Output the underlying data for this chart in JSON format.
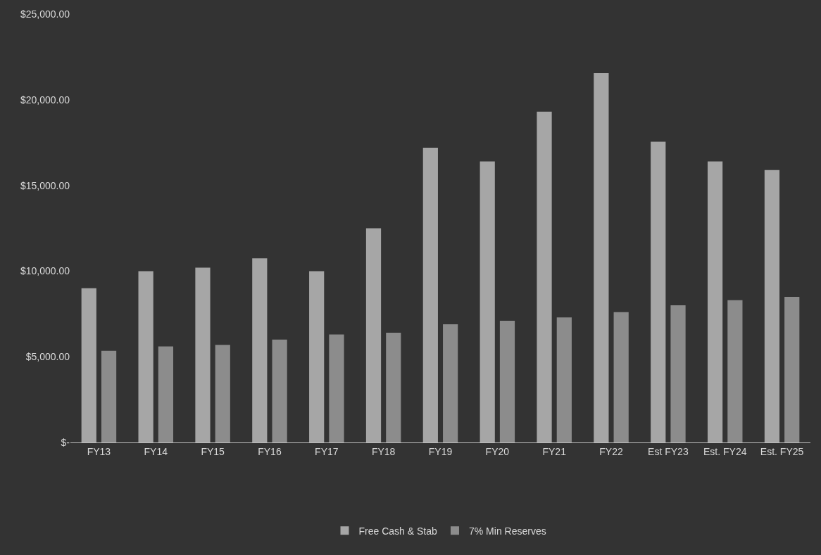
{
  "chart_data": {
    "type": "bar",
    "categories": [
      "FY13",
      "FY14",
      "FY15",
      "FY16",
      "FY17",
      "FY18",
      "FY19",
      "FY20",
      "FY21",
      "FY22",
      "Est FY23",
      "Est. FY24",
      "Est. FY25"
    ],
    "series": [
      {
        "name": "Free Cash & Stab",
        "color": "#a6a6a6",
        "values": [
          9000,
          10000,
          10200,
          10750,
          10000,
          12500,
          17200,
          16400,
          19300,
          21550,
          17550,
          16400,
          15900
        ]
      },
      {
        "name": "7% Min Reserves",
        "color": "#8c8c8c",
        "values": [
          5350,
          5600,
          5700,
          6000,
          6300,
          6400,
          6900,
          7100,
          7300,
          7600,
          8000,
          8300,
          8500
        ]
      }
    ],
    "ylim": [
      0,
      25000
    ],
    "yticks": [
      {
        "value": 0,
        "label": "$-"
      },
      {
        "value": 5000,
        "label": "$5,000.00"
      },
      {
        "value": 10000,
        "label": "$10,000.00"
      },
      {
        "value": 15000,
        "label": "$15,000.00"
      },
      {
        "value": 20000,
        "label": "$20,000.00"
      },
      {
        "value": 25000,
        "label": "$25,000.00"
      }
    ],
    "grid": false,
    "legend": "bottom"
  }
}
